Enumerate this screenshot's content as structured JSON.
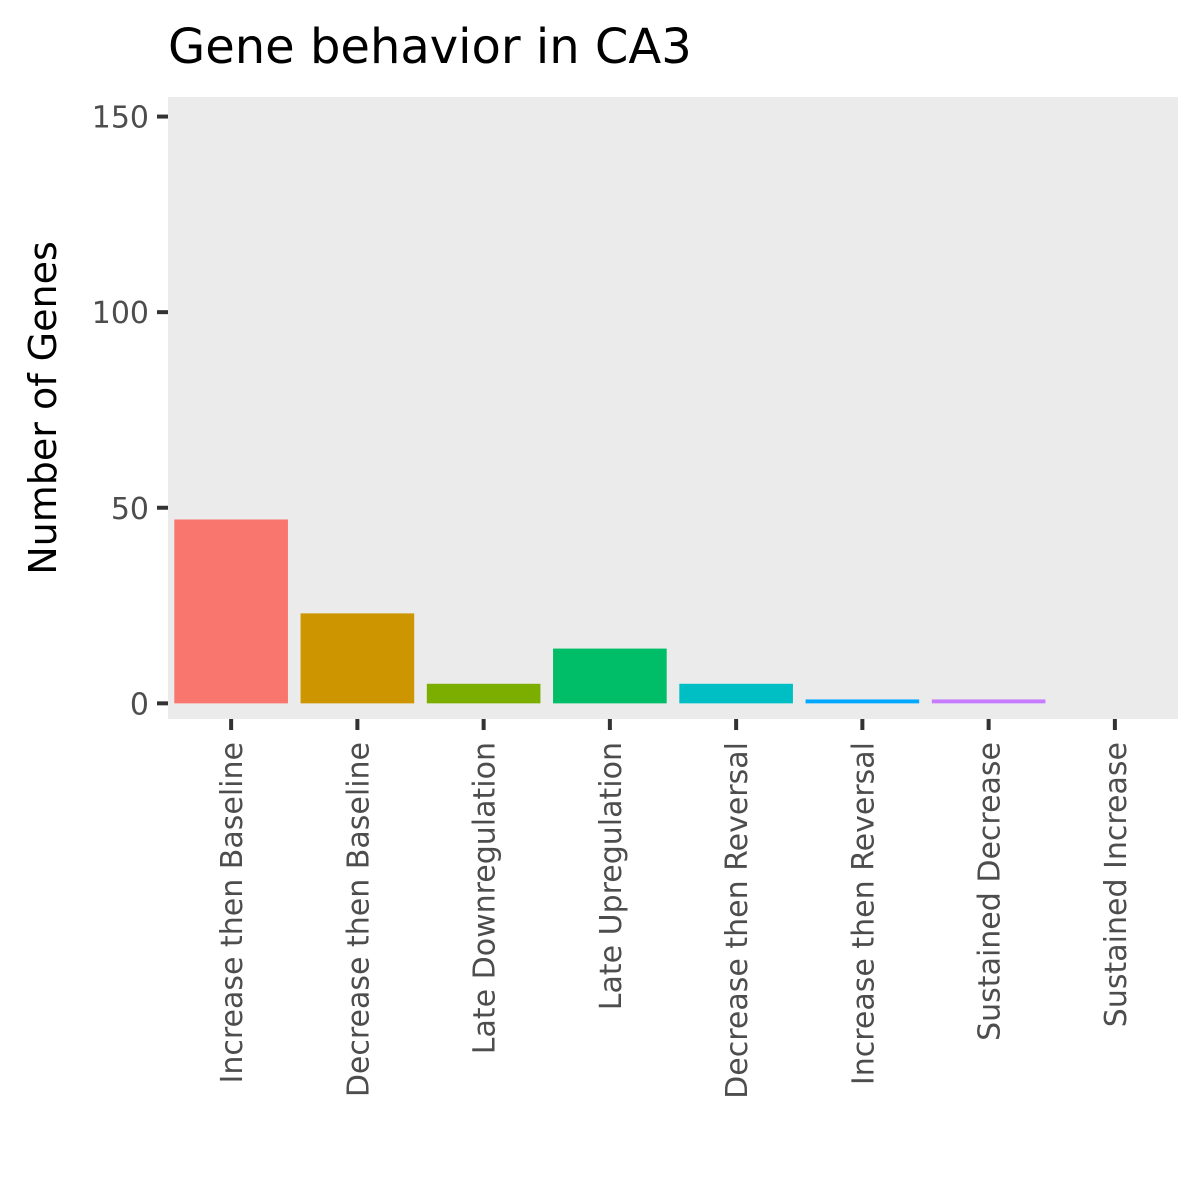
{
  "chart_data": {
    "type": "bar",
    "title": "Gene behavior in CA3",
    "xlabel": "",
    "ylabel": "Number of Genes",
    "ylim": [
      -4,
      155
    ],
    "yticks": [
      0,
      50,
      100,
      150
    ],
    "ytick_labels": [
      "0",
      "50",
      "100",
      "150"
    ],
    "grid": false,
    "legend": "none",
    "panel_background": "#ebebeb",
    "categories": [
      "Increase then Baseline",
      "Decrease then Baseline",
      "Late Downregulation",
      "Late Upregulation",
      "Decrease then Reversal",
      "Increase then Reversal",
      "Sustained Decrease",
      "Sustained Increase"
    ],
    "values": [
      47,
      23,
      5,
      14,
      5,
      1,
      1,
      0
    ],
    "colors": [
      "#f8766d",
      "#cd9600",
      "#7cae00",
      "#00be67",
      "#00bfc4",
      "#00a9ff",
      "#c77cff",
      "#ff61cc"
    ]
  }
}
